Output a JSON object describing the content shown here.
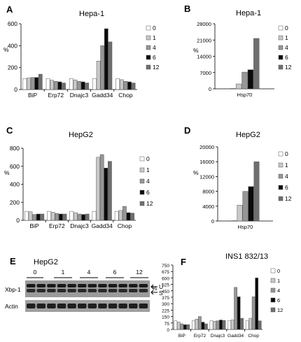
{
  "figure": {
    "series_names": [
      "0",
      "1",
      "4",
      "6",
      "12"
    ],
    "series_colors": [
      "#ffffff",
      "#c8c8c8",
      "#969696",
      "#0a0a0a",
      "#6e6e6e"
    ],
    "blot": {
      "letter": "E",
      "title": "HepG2",
      "lanes": [
        "0",
        "1",
        "4",
        "6",
        "12"
      ],
      "rows": [
        "Xbp-1",
        "Actin"
      ],
      "bands": [
        "U",
        "S"
      ]
    }
  },
  "chart_data": [
    {
      "type": "bar",
      "letter": "A",
      "title": "Hepa-1",
      "ylabel": "%",
      "categories": [
        "BiP",
        "Erp72",
        "Dnajc3",
        "Gadd34",
        "Chop"
      ],
      "ylim": [
        0,
        600
      ],
      "yticks": [
        "0",
        "200",
        "400",
        "600"
      ],
      "series": [
        {
          "name": "0",
          "values": [
            100,
            100,
            100,
            100,
            100
          ]
        },
        {
          "name": "1",
          "values": [
            105,
            85,
            88,
            260,
            90
          ]
        },
        {
          "name": "4",
          "values": [
            110,
            75,
            75,
            400,
            75
          ]
        },
        {
          "name": "6",
          "values": [
            110,
            70,
            70,
            555,
            70
          ]
        },
        {
          "name": "12",
          "values": [
            140,
            60,
            60,
            435,
            60
          ]
        }
      ],
      "legend": "right"
    },
    {
      "type": "bar",
      "letter": "B",
      "title": "Hepa-1",
      "ylabel": "%",
      "categories": [
        "Hsp70"
      ],
      "ylim": [
        0,
        28000
      ],
      "yticks": [
        "0",
        "7000",
        "14000",
        "21000",
        "28000"
      ],
      "series": [
        {
          "name": "0",
          "values": [
            150
          ]
        },
        {
          "name": "1",
          "values": [
            2100
          ]
        },
        {
          "name": "4",
          "values": [
            7200
          ]
        },
        {
          "name": "6",
          "values": [
            8200
          ]
        },
        {
          "name": "12",
          "values": [
            21700
          ]
        }
      ],
      "legend": "right"
    },
    {
      "type": "bar",
      "letter": "C",
      "title": "HepG2",
      "ylabel": "%",
      "categories": [
        "BiP",
        "Erp72",
        "Dnajc3",
        "Gadd34",
        "Chop"
      ],
      "ylim": [
        0,
        800
      ],
      "yticks": [
        "0",
        "200",
        "400",
        "600",
        "800"
      ],
      "series": [
        {
          "name": "0",
          "values": [
            100,
            100,
            100,
            100,
            100
          ]
        },
        {
          "name": "1",
          "values": [
            95,
            90,
            85,
            700,
            110
          ]
        },
        {
          "name": "4",
          "values": [
            65,
            75,
            70,
            730,
            155
          ]
        },
        {
          "name": "6",
          "values": [
            70,
            70,
            65,
            580,
            85
          ]
        },
        {
          "name": "12",
          "values": [
            70,
            70,
            70,
            655,
            80
          ]
        }
      ],
      "legend": "right"
    },
    {
      "type": "bar",
      "letter": "D",
      "title": "HepG2",
      "ylabel": "%",
      "categories": [
        "Hsp70"
      ],
      "ylim": [
        0,
        20000
      ],
      "yticks": [
        "0",
        "4000",
        "8000",
        "12000",
        "16000",
        "20000"
      ],
      "series": [
        {
          "name": "0",
          "values": [
            100
          ]
        },
        {
          "name": "1",
          "values": [
            4300
          ]
        },
        {
          "name": "4",
          "values": [
            8000
          ]
        },
        {
          "name": "6",
          "values": [
            9300
          ]
        },
        {
          "name": "12",
          "values": [
            16000
          ]
        }
      ],
      "legend": "right"
    },
    {
      "type": "bar",
      "letter": "F",
      "title": "INS1 832/13",
      "ylabel": "%",
      "categories": [
        "BiP",
        "Erp72",
        "Dnajc3",
        "Gadd34",
        "Chop"
      ],
      "ylim": [
        0,
        750
      ],
      "yticks": [
        "0",
        "75",
        "150",
        "225",
        "300",
        "375",
        "450",
        "525",
        "600",
        "675",
        "750"
      ],
      "series": [
        {
          "name": "0",
          "values": [
            100,
            100,
            100,
            100,
            100
          ]
        },
        {
          "name": "1",
          "values": [
            85,
            120,
            95,
            110,
            130
          ]
        },
        {
          "name": "4",
          "values": [
            65,
            150,
            100,
            490,
            380
          ]
        },
        {
          "name": "6",
          "values": [
            55,
            85,
            110,
            380,
            600
          ]
        },
        {
          "name": "12",
          "values": [
            55,
            65,
            105,
            130,
            100
          ]
        }
      ],
      "legend": "right"
    }
  ]
}
